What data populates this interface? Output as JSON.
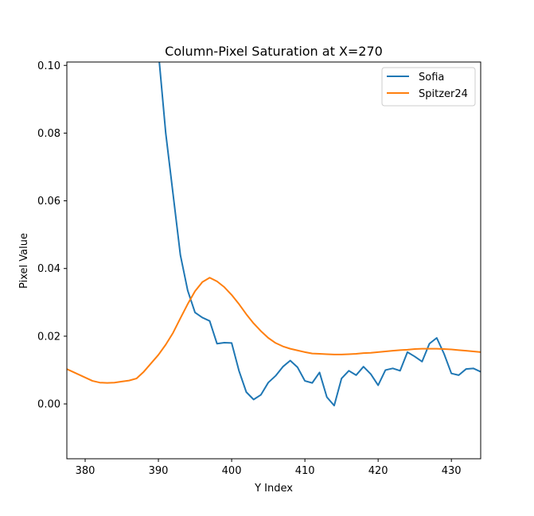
{
  "chart_data": {
    "type": "line",
    "title": "Column-Pixel Saturation at X=270",
    "xlabel": "Y Index",
    "ylabel": "Pixel Value",
    "xlim": [
      377.5,
      434
    ],
    "ylim": [
      -0.0162,
      0.101
    ],
    "xticks": [
      380,
      390,
      400,
      410,
      420,
      430
    ],
    "yticks": [
      0.0,
      0.02,
      0.04,
      0.06,
      0.08,
      0.1
    ],
    "xtick_labels": [
      "380",
      "390",
      "400",
      "410",
      "420",
      "430"
    ],
    "ytick_labels": [
      "0.00",
      "0.02",
      "0.04",
      "0.06",
      "0.08",
      "0.10"
    ],
    "grid": false,
    "legend_position": "top-right",
    "series": [
      {
        "name": "Sofia",
        "color": "#1f77b4",
        "x": [
          389,
          390,
          391,
          392,
          393,
          394,
          395,
          396,
          397,
          398,
          399,
          400,
          401,
          402,
          403,
          404,
          405,
          406,
          407,
          408,
          409,
          410,
          411,
          412,
          413,
          414,
          415,
          416,
          417,
          418,
          419,
          420,
          421,
          422,
          423,
          424,
          425,
          426,
          427,
          428,
          429,
          430,
          431,
          432,
          433,
          434
        ],
        "y": [
          0.13,
          0.104,
          0.08,
          0.062,
          0.044,
          0.0335,
          0.027,
          0.0255,
          0.0245,
          0.0178,
          0.0181,
          0.018,
          0.0098,
          0.0035,
          0.0013,
          0.0027,
          0.0063,
          0.0083,
          0.011,
          0.0128,
          0.0108,
          0.0068,
          0.0062,
          0.0093,
          0.002,
          -0.0005,
          0.0075,
          0.0098,
          0.0085,
          0.011,
          0.0088,
          0.0055,
          0.01,
          0.0105,
          0.0098,
          0.0153,
          0.014,
          0.0125,
          0.0178,
          0.0195,
          0.0148,
          0.009,
          0.0085,
          0.0103,
          0.0105,
          0.0095
        ]
      },
      {
        "name": "Spitzer24",
        "color": "#ff7f0e",
        "x": [
          377,
          378,
          379,
          380,
          381,
          382,
          383,
          384,
          385,
          386,
          387,
          388,
          389,
          390,
          391,
          392,
          393,
          394,
          395,
          396,
          397,
          398,
          399,
          400,
          401,
          402,
          403,
          404,
          405,
          406,
          407,
          408,
          409,
          410,
          411,
          412,
          413,
          414,
          415,
          416,
          417,
          418,
          419,
          420,
          421,
          422,
          423,
          424,
          425,
          426,
          427,
          428,
          429,
          430,
          431,
          432,
          433,
          434
        ],
        "y": [
          0.0108,
          0.0098,
          0.0088,
          0.0078,
          0.0068,
          0.0063,
          0.0062,
          0.0063,
          0.0066,
          0.0069,
          0.0075,
          0.0095,
          0.012,
          0.0145,
          0.0175,
          0.021,
          0.0253,
          0.0295,
          0.0333,
          0.036,
          0.0373,
          0.0362,
          0.0345,
          0.0322,
          0.0295,
          0.0265,
          0.0238,
          0.0215,
          0.0195,
          0.018,
          0.017,
          0.0163,
          0.0158,
          0.0153,
          0.0149,
          0.0148,
          0.0147,
          0.0146,
          0.0146,
          0.0147,
          0.0148,
          0.015,
          0.0151,
          0.0153,
          0.0155,
          0.0157,
          0.0159,
          0.016,
          0.0162,
          0.0163,
          0.0163,
          0.0163,
          0.0162,
          0.0161,
          0.0159,
          0.0157,
          0.0155,
          0.0153
        ]
      }
    ]
  }
}
